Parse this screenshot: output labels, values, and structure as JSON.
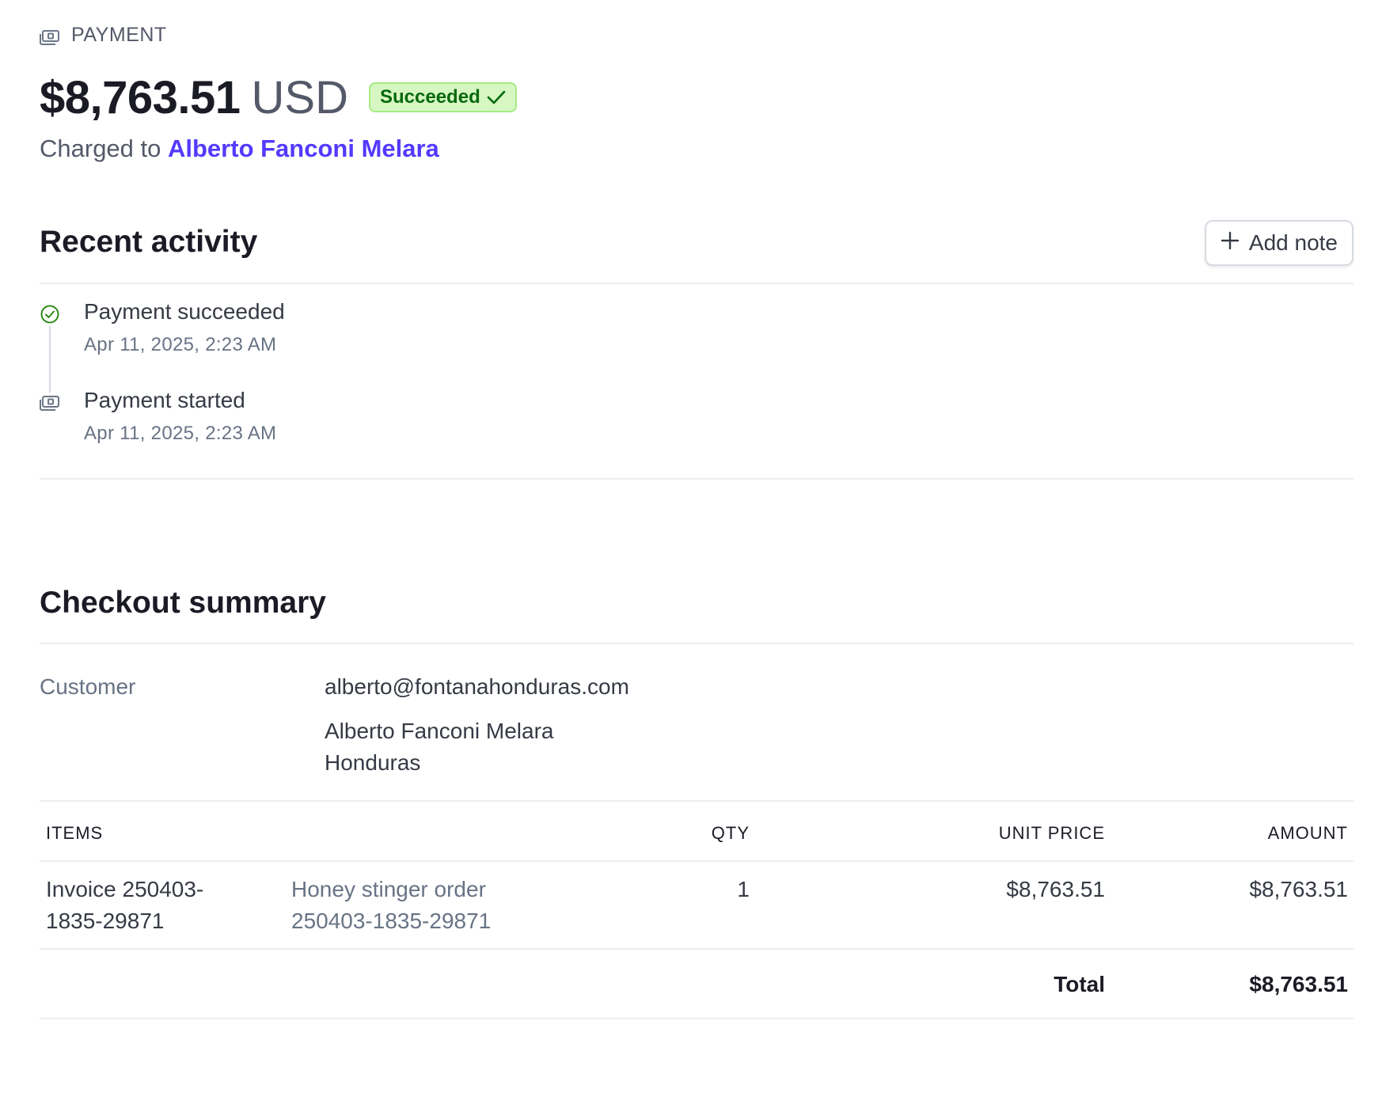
{
  "header": {
    "eyebrow_icon": "payment-icon",
    "eyebrow": "PAYMENT",
    "amount": "$8,763.51",
    "currency": "USD",
    "status": "Succeeded",
    "status_icon": "checkmark-icon",
    "charged_prefix": "Charged to",
    "customer_name": "Alberto Fanconi Melara"
  },
  "recent_activity": {
    "title": "Recent activity",
    "add_note_label": "Add note",
    "add_note_icon": "plus-icon",
    "events": [
      {
        "icon": "check-circle-icon",
        "title": "Payment succeeded",
        "date": "Apr 11, 2025, 2:23 AM"
      },
      {
        "icon": "payment-icon",
        "title": "Payment started",
        "date": "Apr 11, 2025, 2:23 AM"
      }
    ]
  },
  "checkout_summary": {
    "title": "Checkout summary",
    "customer_label": "Customer",
    "customer_email": "alberto@fontanahonduras.com",
    "customer_name": "Alberto Fanconi Melara",
    "customer_country": "Honduras",
    "columns": {
      "items": "ITEMS",
      "qty": "QTY",
      "unit_price": "UNIT PRICE",
      "amount": "AMOUNT"
    },
    "items": [
      {
        "name_line1": "Invoice 250403-",
        "name_line2": "1835-29871",
        "description_line1": "Honey stinger order",
        "description_line2": "250403-1835-29871",
        "qty": "1",
        "unit_price": "$8,763.51",
        "amount": "$8,763.51"
      }
    ],
    "total_label": "Total",
    "total_value": "$8,763.51"
  },
  "colors": {
    "accent": "#533afd",
    "success_bg": "#d7f7c2",
    "success_text": "#05690d",
    "success_icon": "#2c8b17"
  }
}
